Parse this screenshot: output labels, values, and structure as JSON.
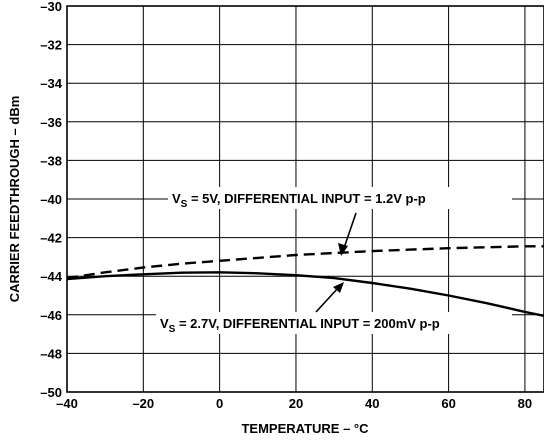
{
  "chart_data": {
    "type": "line",
    "title": "",
    "xlabel": "TEMPERATURE – °C",
    "ylabel": "CARRIER FEEDTHROUGH – dBm",
    "xlim": [
      -40,
      85
    ],
    "ylim": [
      -50,
      -30
    ],
    "xticks": [
      "–40",
      "–20",
      "0",
      "20",
      "40",
      "60",
      "80"
    ],
    "xtick_values": [
      -40,
      -20,
      0,
      20,
      40,
      60,
      80
    ],
    "yticks": [
      "–30",
      "–32",
      "–34",
      "–36",
      "–38",
      "–40",
      "–42",
      "–44",
      "–46",
      "–48",
      "–50"
    ],
    "ytick_values": [
      -30,
      -32,
      -34,
      -36,
      -38,
      -40,
      -42,
      -44,
      -46,
      -48,
      -50
    ],
    "grid": true,
    "series": [
      {
        "name": "VS = 5V, DIFFERENTIAL INPUT = 1.2V p-p",
        "style": "dashed",
        "x": [
          -40,
          -30,
          -20,
          -10,
          0,
          10,
          20,
          30,
          40,
          50,
          60,
          70,
          80,
          85
        ],
        "y": [
          -44.1,
          -43.8,
          -43.55,
          -43.35,
          -43.2,
          -43.05,
          -42.9,
          -42.8,
          -42.7,
          -42.62,
          -42.55,
          -42.5,
          -42.45,
          -42.45
        ]
      },
      {
        "name": "VS = 2.7V, DIFFERENTIAL INPUT = 200mV p-p",
        "style": "solid",
        "x": [
          -40,
          -30,
          -20,
          -10,
          0,
          10,
          20,
          30,
          40,
          50,
          60,
          70,
          80,
          85
        ],
        "y": [
          -44.15,
          -44.0,
          -43.9,
          -43.82,
          -43.8,
          -43.85,
          -43.95,
          -44.1,
          -44.35,
          -44.65,
          -45.0,
          -45.4,
          -45.85,
          -46.05
        ]
      }
    ],
    "annotations": {
      "dashed": {
        "sub": "S",
        "rest": " = 5V, DIFFERENTIAL INPUT = 1.2V p-p"
      },
      "solid": {
        "sub": "S",
        "rest": " = 2.7V, DIFFERENTIAL INPUT = 200mV p-p"
      }
    },
    "colors": {
      "line": "#000000",
      "grid": "#000000",
      "background": "#ffffff"
    }
  }
}
